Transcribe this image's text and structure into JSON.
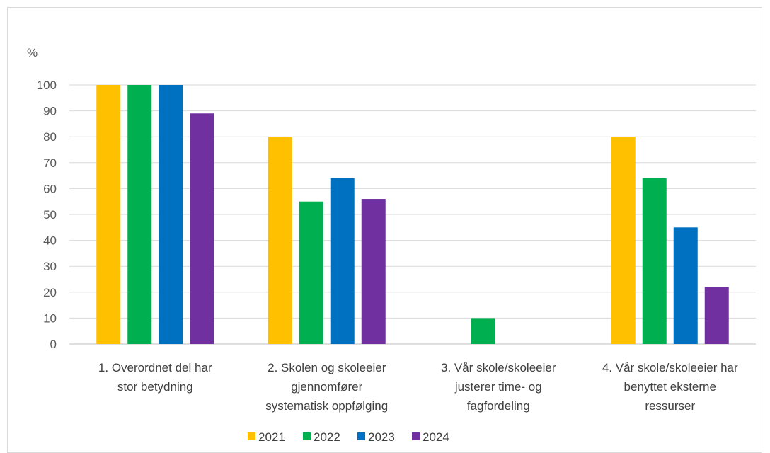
{
  "chart_data": {
    "type": "bar",
    "unit_label": "%",
    "categories": [
      [
        "1. Overordnet del har",
        "stor betydning"
      ],
      [
        "2. Skolen og skoleeier",
        "gjennomfører",
        "systematisk oppfølging"
      ],
      [
        "3. Vår skole/skoleeier",
        "justerer time- og",
        "fagfordeling"
      ],
      [
        "4. Vår skole/skoleeier har",
        "benyttet eksterne",
        "ressurser"
      ]
    ],
    "series": [
      {
        "name": "2021",
        "color": "#FFC000",
        "values": [
          100,
          80,
          0,
          80
        ]
      },
      {
        "name": "2022",
        "color": "#00B050",
        "values": [
          100,
          55,
          10,
          64
        ]
      },
      {
        "name": "2023",
        "color": "#0070C0",
        "values": [
          100,
          64,
          0,
          45
        ]
      },
      {
        "name": "2024",
        "color": "#7030A0",
        "values": [
          89,
          56,
          0,
          22
        ]
      }
    ],
    "ylim": [
      0,
      100
    ],
    "yticks": [
      0,
      10,
      20,
      30,
      40,
      50,
      60,
      70,
      80,
      90,
      100
    ],
    "grid": true,
    "legend_position": "bottom"
  }
}
